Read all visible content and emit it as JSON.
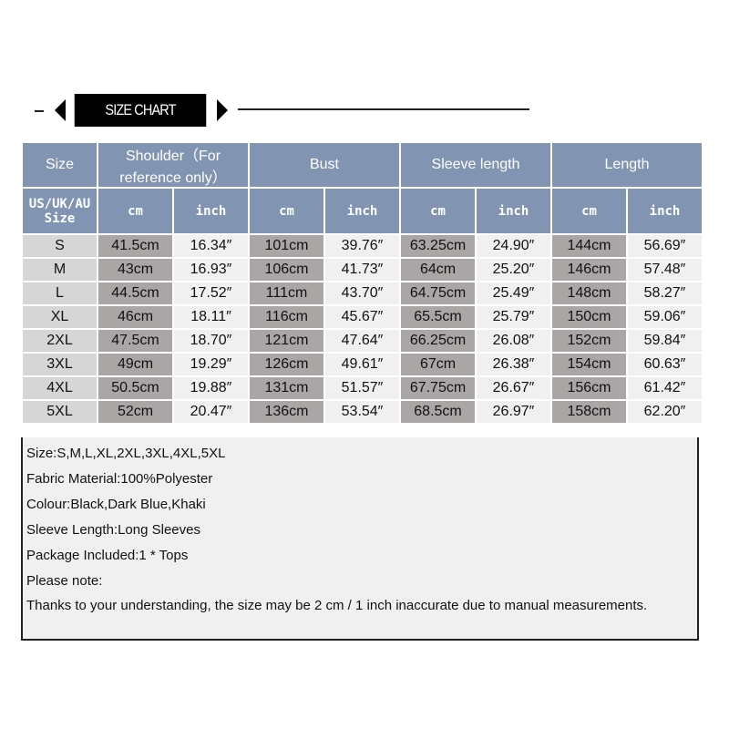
{
  "banner": {
    "title": "SIZE CHART"
  },
  "table": {
    "header1": [
      "Size",
      "Shoulder（For reference only）",
      "Bust",
      "Sleeve length",
      "Length"
    ],
    "header2": [
      "US/UK/AU Size",
      "cm",
      "inch",
      "cm",
      "inch",
      "cm",
      "inch",
      "cm",
      "inch"
    ],
    "rows": [
      [
        "S",
        "41.5cm",
        "16.34″",
        "101cm",
        "39.76″",
        "63.25cm",
        "24.90″",
        "144cm",
        "56.69″"
      ],
      [
        "M",
        "43cm",
        "16.93″",
        "106cm",
        "41.73″",
        "64cm",
        "25.20″",
        "146cm",
        "57.48″"
      ],
      [
        "L",
        "44.5cm",
        "17.52″",
        "111cm",
        "43.70″",
        "64.75cm",
        "25.49″",
        "148cm",
        "58.27″"
      ],
      [
        "XL",
        "46cm",
        "18.11″",
        "116cm",
        "45.67″",
        "65.5cm",
        "25.79″",
        "150cm",
        "59.06″"
      ],
      [
        "2XL",
        "47.5cm",
        "18.70″",
        "121cm",
        "47.64″",
        "66.25cm",
        "26.08″",
        "152cm",
        "59.84″"
      ],
      [
        "3XL",
        "49cm",
        "19.29″",
        "126cm",
        "49.61″",
        "67cm",
        "26.38″",
        "154cm",
        "60.63″"
      ],
      [
        "4XL",
        "50.5cm",
        "19.88″",
        "131cm",
        "51.57″",
        "67.75cm",
        "26.67″",
        "156cm",
        "61.42″"
      ],
      [
        "5XL",
        "52cm",
        "20.47″",
        "136cm",
        "53.54″",
        "68.5cm",
        "26.97″",
        "158cm",
        "62.20″"
      ]
    ]
  },
  "notes": [
    "Size:S,M,L,XL,2XL,3XL,4XL,5XL",
    "Fabric Material:100%Polyester",
    "Colour:Black,Dark Blue,Khaki",
    "Sleeve Length:Long Sleeves",
    "Package Included:1 * Tops",
    "Please note:",
    "Thanks to your understanding, the size may be 2 cm / 1 inch inaccurate due to manual measurements."
  ],
  "colors": {
    "header": "#8195b2",
    "size_col": "#d6d6d6",
    "cm_col": "#aaa6a6",
    "inch_col": "#f0f0f0"
  }
}
